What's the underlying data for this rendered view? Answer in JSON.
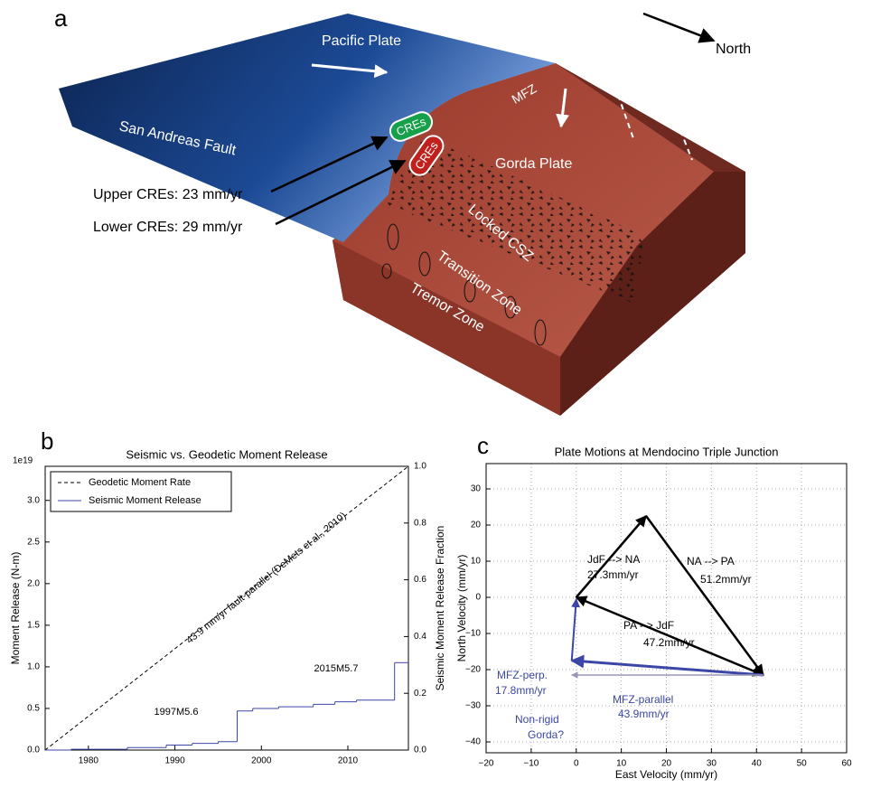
{
  "panel_labels": [
    "a",
    "b",
    "c"
  ],
  "diagram": {
    "pacific": "Pacific Plate",
    "north": "North",
    "mfz": "MFZ",
    "saf": "San Andreas Fault",
    "cres_upper": "CREs",
    "cres_lower": "CREs",
    "gorda": "Gorda Plate",
    "upper_rate": "Upper CREs: 23 mm/yr",
    "lower_rate": "Lower CREs: 29 mm/yr",
    "locked": "Locked CSZ",
    "transition": "Transition Zone",
    "tremor": "Tremor Zone"
  },
  "chart_data": [
    {
      "type": "line",
      "title": "Seismic vs. Geodetic Moment Release",
      "ylabel": "Moment Release (N-m)",
      "y2label": "Seismic Moment Release Fraction",
      "yscale_label": "1e19",
      "xlim": [
        1975,
        2017
      ],
      "xticks": [
        1980,
        1990,
        2000,
        2010
      ],
      "ylim": [
        0,
        3.41
      ],
      "yticks": [
        {
          "value": 0,
          "label": "0.0"
        },
        0.5,
        {
          "value": 1,
          "label": "1.0"
        },
        1.5,
        {
          "value": 2,
          "label": "2.0"
        },
        2.5,
        {
          "value": 3,
          "label": "3.0"
        }
      ],
      "y2lim": [
        0,
        1
      ],
      "y2ticks": [
        {
          "value": 0,
          "label": "0.0"
        },
        0.2,
        0.4,
        0.6,
        0.8,
        {
          "value": 1,
          "label": "1.0"
        }
      ],
      "grid": false,
      "legend": "upper left",
      "series": [
        {
          "name": "Geodetic Moment Rate",
          "color": "#000000",
          "dash": true,
          "x": [
            1975,
            2017
          ],
          "values": [
            0,
            3.41
          ]
        },
        {
          "name": "Seismic Moment Release",
          "color": "#3b46a6",
          "steps": true,
          "x": [
            1975,
            1978,
            1984.5,
            1989,
            1992,
            1995,
            1997.2,
            1999,
            2002,
            2006,
            2008.5,
            2011,
            2015.4
          ],
          "values": [
            0,
            0.01,
            0.03,
            0.06,
            0.08,
            0.1,
            0.47,
            0.5,
            0.52,
            0.55,
            0.58,
            0.6,
            1.05
          ]
        }
      ],
      "annotations": [
        "43.9 mm/yr fault-parallel (DeMets et al., 2010)",
        "1997M5.6",
        "2015M5.7"
      ]
    },
    {
      "type": "vector",
      "title": "Plate Motions at Mendocino Triple Junction",
      "xlabel": "East Velocity (mm/yr)",
      "ylabel": "North Velocity (mm/yr)",
      "xlim": [
        -20,
        60
      ],
      "xticks": [
        {
          "value": -20,
          "label": "−20"
        },
        {
          "value": -10,
          "label": "−10"
        },
        0,
        10,
        20,
        30,
        40,
        50,
        60
      ],
      "ylim": [
        -43,
        37
      ],
      "yticks": [
        {
          "value": -40,
          "label": "−40"
        },
        {
          "value": -30,
          "label": "−30"
        },
        {
          "value": -20,
          "label": "−20"
        },
        {
          "value": -10,
          "label": "−10"
        },
        0,
        10,
        20,
        30
      ],
      "grid": true,
      "vectors": [
        {
          "name": "JdF --> NA",
          "label": "27.3mm/yr",
          "color": "#000000",
          "from": [
            0,
            0
          ],
          "to": [
            15.5,
            22.5
          ]
        },
        {
          "name": "NA --> PA",
          "label": "51.2mm/yr",
          "color": "#000000",
          "from": [
            15.5,
            22.5
          ],
          "to": [
            41.5,
            -21.5
          ]
        },
        {
          "name": "PA --> JdF",
          "label": "47.2mm/yr",
          "color": "#000000",
          "from": [
            41.5,
            -21.5
          ],
          "to": [
            0,
            0
          ]
        },
        {
          "name": "MFZ-parallel",
          "label": "43.9mm/yr",
          "color": "#3b46a6",
          "from": [
            41.5,
            -21.5
          ],
          "to": [
            -1,
            -17.5
          ]
        },
        {
          "name": "MFZ-perp.",
          "label": "17.8mm/yr",
          "color": "#3b46a6",
          "from": [
            -1,
            -17.5
          ],
          "to": [
            0,
            -0.5
          ]
        },
        {
          "name": "Non-rigid",
          "label": "Gorda?",
          "color": "#9a96b8",
          "from": [
            41.5,
            -21.5
          ],
          "to": [
            -1,
            -21.5
          ]
        }
      ]
    }
  ]
}
